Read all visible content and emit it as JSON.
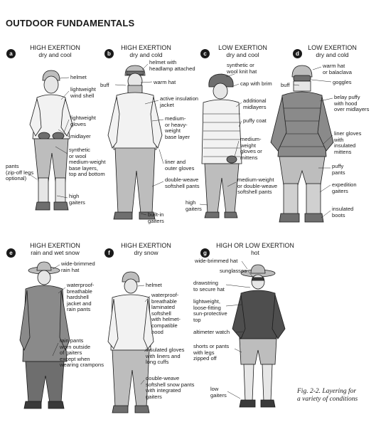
{
  "title": "OUTDOOR FUNDAMENTALS",
  "caption": "Fig. 2-2. Layering for\na variety of conditions",
  "colors": {
    "ink": "#1a1a1a",
    "skin": "#d9d9d9",
    "garment_light": "#f2f2f2",
    "garment_mid": "#bdbdbd",
    "garment_dark": "#6e6e6e"
  },
  "panels": [
    {
      "letter": "a",
      "heading": "HIGH EXERTION",
      "sub": "dry and cool",
      "labels": [
        "helmet",
        "lightweight\nwind shell",
        "lightweight\ngloves",
        "midlayer",
        "synthetic\nor wool\nmedium-weight\nbase layers,\ntop and bottom",
        "pants\n(zip-off legs\noptional)",
        "high\ngaiters"
      ]
    },
    {
      "letter": "b",
      "heading": "HIGH EXERTION",
      "sub": "dry and cold",
      "labels": [
        "helmet with\nheadlamp attached",
        "buff",
        "warm hat",
        "active insulation\njacket",
        "medium-\nor heavy-\nweight\nbase layer",
        "liner and\nouter gloves",
        "double-weave\nsoftshell pants",
        "built-in\ngaiters"
      ]
    },
    {
      "letter": "c",
      "heading": "LOW EXERTION",
      "sub": "dry and cool",
      "labels": [
        "synthetic or\nwool knit hat",
        "cap with brim",
        "additional\nmidlayers",
        "puffy coat",
        "medium-\nweight\ngloves or\nmittens",
        "medium-weight\nor double-weave\nsoftshell pants",
        "high\ngaiters"
      ]
    },
    {
      "letter": "d",
      "heading": "LOW EXERTION",
      "sub": "dry and cold",
      "labels": [
        "warm hat\nor balaclava",
        "buff",
        "goggles",
        "belay puffy\nwith hood\nover midlayers",
        "liner gloves\nwith\ninsulated\nmittens",
        "puffy\npants",
        "expedition\ngaiters",
        "insulated\nboots"
      ]
    },
    {
      "letter": "e",
      "heading": "HIGH EXERTION",
      "sub": "rain and wet snow",
      "labels": [
        "wide-brimmed\nrain hat",
        "waterproof-\nbreathable\nhardshell\njacket and\nrain pants",
        "rain pants\nworn outside\nof gaiters\nexcept when\nwearing crampons"
      ]
    },
    {
      "letter": "f",
      "heading": "HIGH EXERTION",
      "sub": "dry snow",
      "labels": [
        "helmet",
        "waterproof-\nbreathable\nlaminated\nsoftshell\nwith helmet-\ncompatible\nhood",
        "insulated gloves\nwith liners and\nlong cuffs",
        "double-weave\nsoftshell snow pants\nwith integrated\ngaiters"
      ]
    },
    {
      "letter": "g",
      "heading": "HIGH OR LOW EXERTION",
      "sub": "hot",
      "labels": [
        "wide-brimmed hat",
        "sunglasses",
        "drawstring\nto secure hat",
        "lightweight,\nloose-fitting\nsun-protective\ntop",
        "altimeter watch",
        "shorts or pants\nwith legs\nzipped off",
        "low\ngaiters"
      ]
    }
  ]
}
